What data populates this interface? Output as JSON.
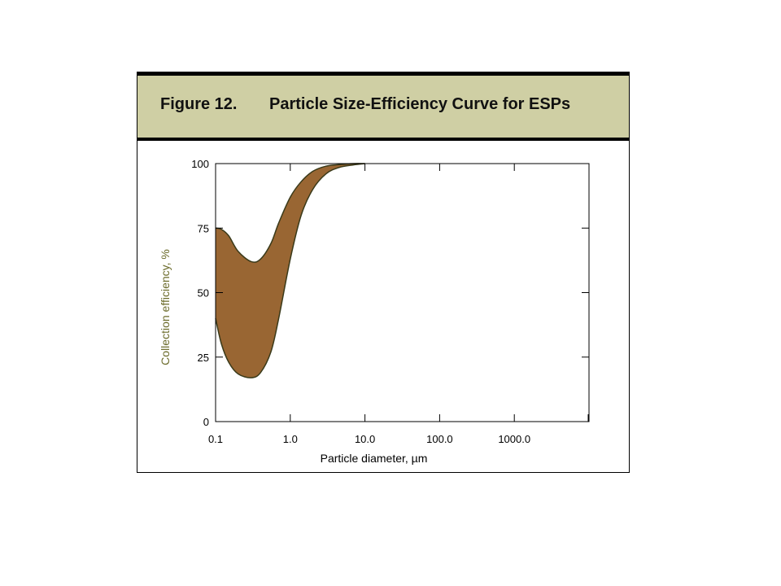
{
  "figure": {
    "label": "Figure 12.",
    "title": "Particle Size-Efficiency Curve for ESPs"
  },
  "colors": {
    "header_bg": "#cfcfa4",
    "band_fill": "#996633",
    "band_stroke": "#3a3a1a",
    "ylabel_color": "#6b6b2a"
  },
  "chart_data": {
    "type": "area",
    "title": "Particle Size-Efficiency Curve for ESPs",
    "xlabel": "Particle diameter, µm",
    "ylabel": "Collection efficiency, %",
    "x_scale": "log",
    "xlim": [
      0.1,
      10000
    ],
    "ylim": [
      0,
      100
    ],
    "x_ticks": [
      0.1,
      1.0,
      10.0,
      100.0,
      1000.0
    ],
    "x_tick_labels": [
      "0.1",
      "1.0",
      "10.0",
      "100.0",
      "1000.0"
    ],
    "y_ticks": [
      0,
      25,
      50,
      75,
      100
    ],
    "y_tick_labels": [
      "0",
      "25",
      "50",
      "75",
      "100"
    ],
    "grid": false,
    "series": [
      {
        "x": [
          0.1,
          0.12,
          0.15,
          0.2,
          0.3,
          0.4,
          0.55,
          0.7,
          1.0,
          1.4,
          2.0,
          3.0,
          4.5,
          7.0,
          10.0
        ],
        "values": [
          75,
          74.5,
          72,
          66,
          62,
          63,
          69,
          77,
          87,
          93,
          97,
          99,
          99.6,
          100,
          100
        ]
      },
      {
        "x": [
          0.1,
          0.12,
          0.15,
          0.2,
          0.3,
          0.4,
          0.55,
          0.7,
          1.0,
          1.4,
          2.0,
          3.0,
          4.5,
          7.0,
          10.0
        ],
        "values": [
          40,
          30,
          23,
          18.5,
          17,
          19,
          27,
          40,
          63,
          80,
          90,
          96,
          98.5,
          99.5,
          100
        ]
      }
    ]
  }
}
